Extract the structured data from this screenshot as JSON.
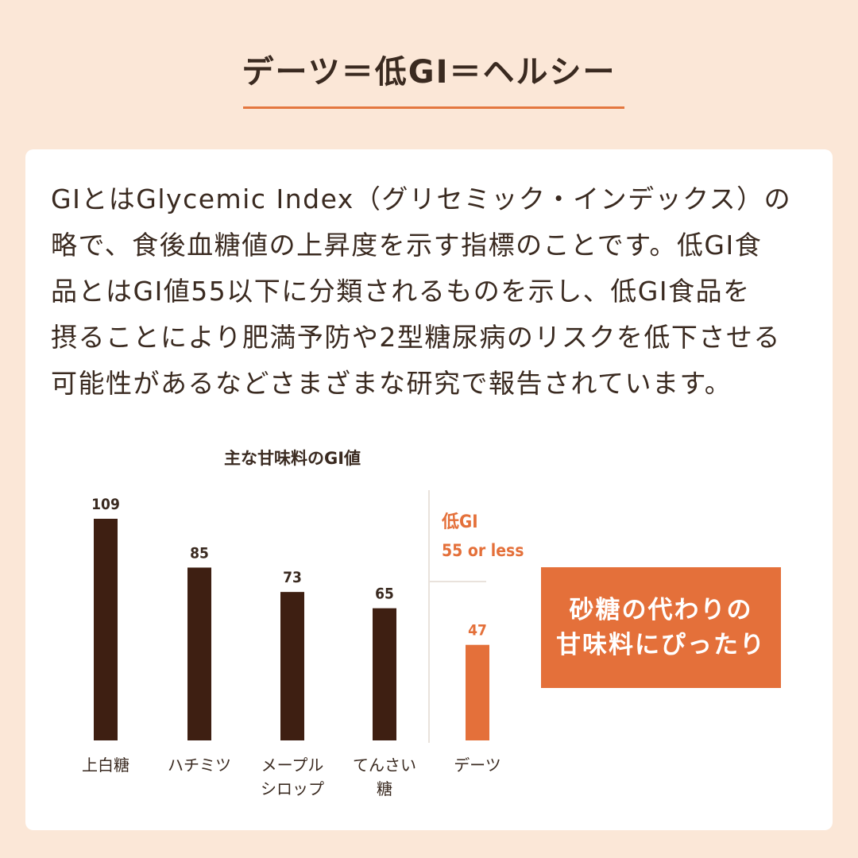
{
  "page": {
    "title": "デーツ＝低GI＝ヘルシー",
    "paragraph_lines": [
      "GIとはGlycemic Index（グリセミック・インデックス）の",
      "略で、食後血糖値の上昇度を示す指標のことです。低GI食",
      "品とはGI値55以下に分類されるものを示し、低GI食品を",
      "摂ることにより肥満予防や2型糖尿病のリスクを低下させる",
      "可能性があるなどさまざまな研究で報告されています。"
    ],
    "callout_lines": [
      "砂糖の代わりの",
      "甘味料にぴったり"
    ]
  },
  "colors": {
    "background": "#fbe7d7",
    "card": "#ffffff",
    "accent": "#e4703a",
    "bar_dark": "#3e1f12",
    "text": "#3a2a20"
  },
  "chart_data": {
    "type": "bar",
    "title": "主な甘味料のGI値",
    "categories": [
      [
        "上白糖"
      ],
      [
        "ハチミツ"
      ],
      [
        "メープル",
        "シロップ"
      ],
      [
        "てんさい",
        "糖"
      ],
      [
        "デーツ"
      ]
    ],
    "values": [
      109,
      85,
      73,
      65,
      47
    ],
    "highlight_index": 4,
    "threshold_label": [
      "低GI",
      "55 or less"
    ],
    "threshold_value": 55,
    "ylim": [
      0,
      109
    ],
    "grid": false,
    "legend": "none"
  }
}
